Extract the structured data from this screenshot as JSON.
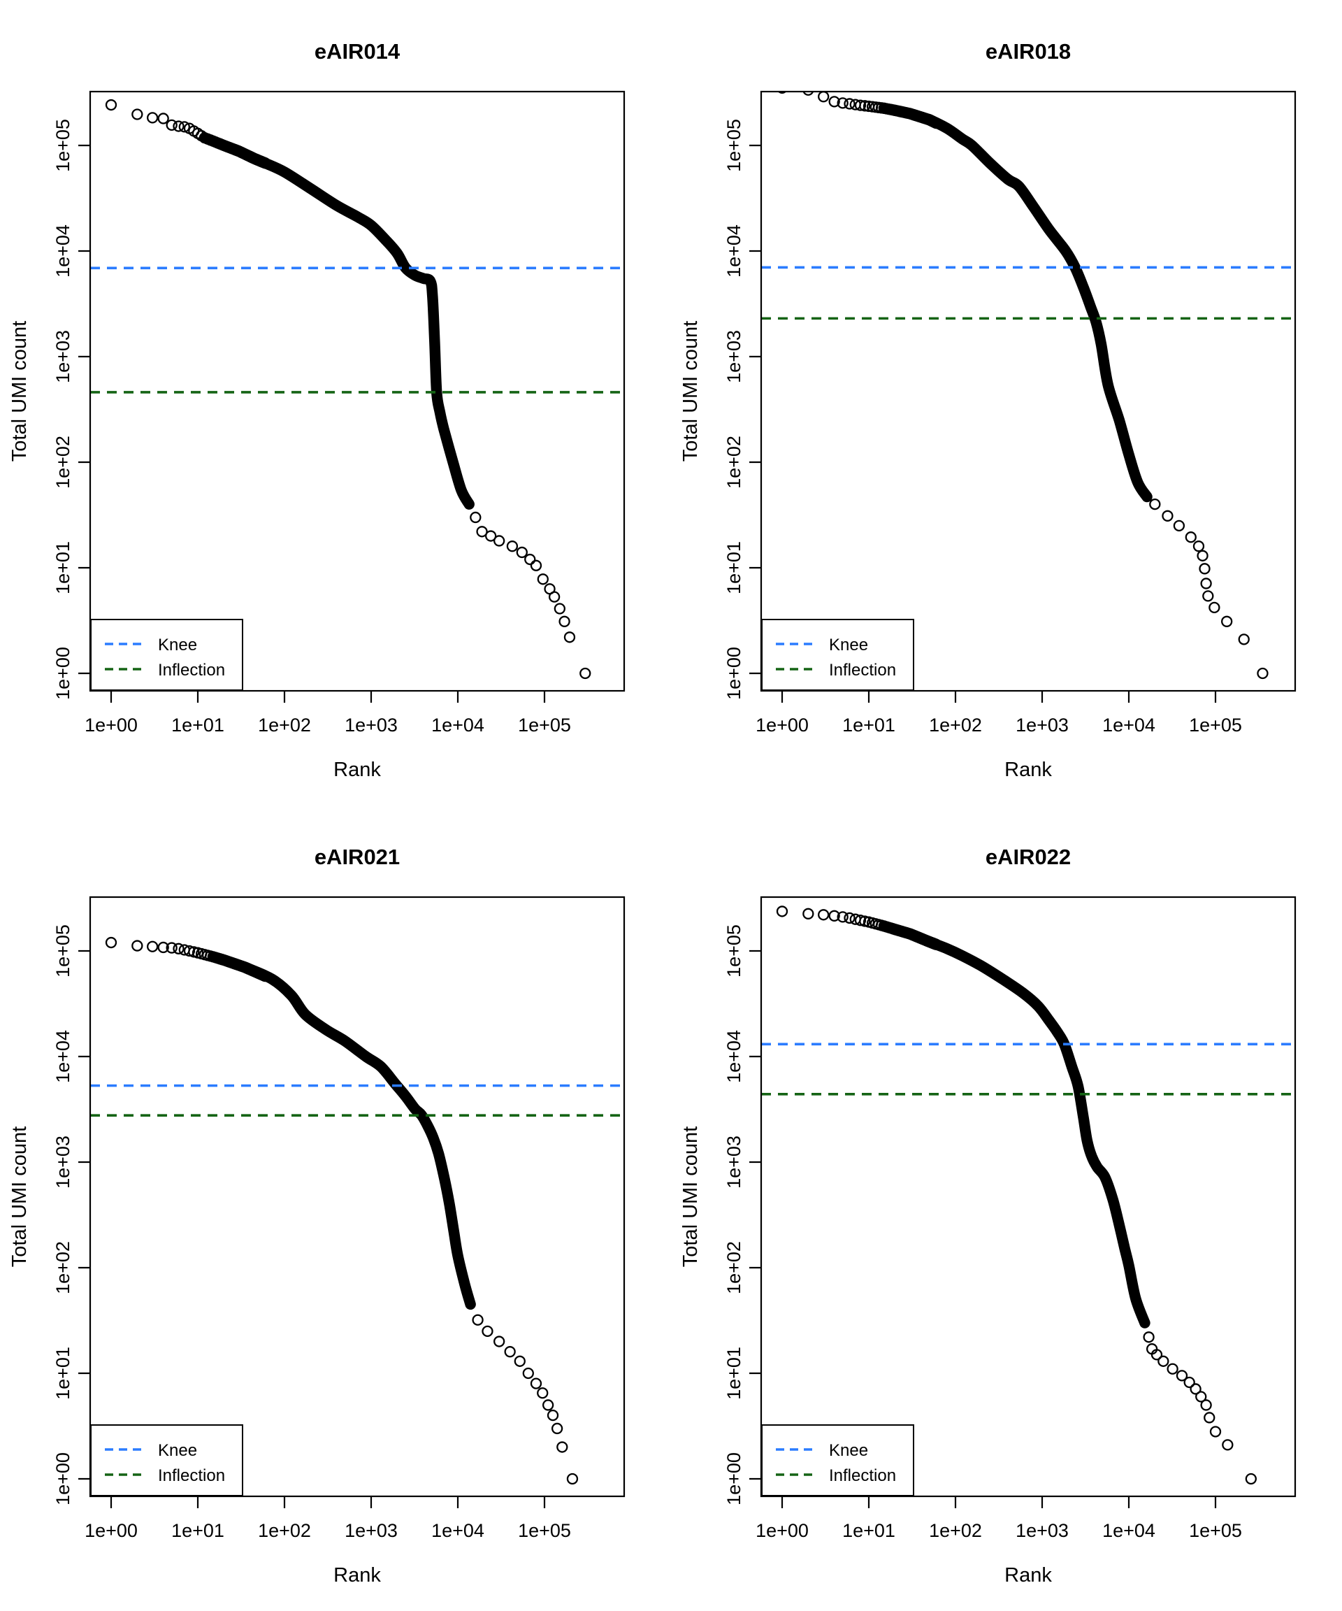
{
  "figure": {
    "background": "#ffffff",
    "legend": {
      "knee_label": "Knee",
      "inflection_label": "Inflection"
    },
    "colors": {
      "knee": "#2B7CFF",
      "inflection": "#156415",
      "points": "#000000"
    },
    "x_ticks": [
      {
        "label": "1e+00",
        "value": 1
      },
      {
        "label": "1e+01",
        "value": 10
      },
      {
        "label": "1e+02",
        "value": 100
      },
      {
        "label": "1e+03",
        "value": 1000
      },
      {
        "label": "1e+04",
        "value": 10000
      },
      {
        "label": "1e+05",
        "value": 100000
      }
    ],
    "y_ticks": [
      {
        "label": "1e+00",
        "value": 1
      },
      {
        "label": "1e+01",
        "value": 10
      },
      {
        "label": "1e+02",
        "value": 100
      },
      {
        "label": "1e+03",
        "value": 1000
      },
      {
        "label": "1e+04",
        "value": 10000
      },
      {
        "label": "1e+05",
        "value": 100000
      }
    ]
  },
  "chart_data": [
    {
      "type": "scatter",
      "title": "eAIR014",
      "xlabel": "Rank",
      "ylabel": "Total UMI count",
      "x_scale": "log",
      "y_scale": "log",
      "x_range": [
        1,
        295000
      ],
      "y_range": [
        1,
        242000
      ],
      "knee": 6900,
      "inflection": 460,
      "curve": [
        [
          1,
          242000
        ],
        [
          2,
          197000
        ],
        [
          3,
          183000
        ],
        [
          4,
          180000
        ],
        [
          5,
          156000
        ],
        [
          6,
          152000
        ],
        [
          7,
          150000
        ],
        [
          8,
          145000
        ],
        [
          10,
          130000
        ],
        [
          12,
          118000
        ],
        [
          15,
          110000
        ],
        [
          20,
          100000
        ],
        [
          30,
          88000
        ],
        [
          45,
          75000
        ],
        [
          60,
          68000
        ],
        [
          100,
          56000
        ],
        [
          200,
          39000
        ],
        [
          400,
          27000
        ],
        [
          700,
          21000
        ],
        [
          1000,
          17500
        ],
        [
          1500,
          12500
        ],
        [
          2000,
          9500
        ],
        [
          2500,
          6900
        ],
        [
          3200,
          5900
        ],
        [
          4000,
          5500
        ],
        [
          4800,
          5200
        ],
        [
          5100,
          3800
        ],
        [
          5400,
          1400
        ],
        [
          5700,
          460
        ],
        [
          6200,
          300
        ],
        [
          6900,
          205
        ],
        [
          8800,
          100
        ],
        [
          11000,
          54
        ],
        [
          13500,
          40
        ]
      ],
      "tail": [
        [
          16000,
          30
        ],
        [
          19000,
          22
        ],
        [
          24000,
          20
        ],
        [
          30000,
          18
        ],
        [
          42500,
          16
        ],
        [
          55000,
          14
        ],
        [
          68000,
          12
        ],
        [
          80000,
          10.5
        ],
        [
          96000,
          7.8
        ],
        [
          115000,
          6.3
        ],
        [
          130000,
          5.3
        ],
        [
          150000,
          4.1
        ],
        [
          170000,
          3.1
        ],
        [
          195000,
          2.2
        ],
        [
          295000,
          1
        ]
      ]
    },
    {
      "type": "scatter",
      "title": "eAIR018",
      "xlabel": "Rank",
      "ylabel": "Total UMI count",
      "x_scale": "log",
      "y_scale": "log",
      "x_range": [
        1,
        350000
      ],
      "y_range": [
        1,
        350000
      ],
      "knee": 7000,
      "inflection": 2300,
      "curve": [
        [
          1,
          350000
        ],
        [
          2,
          335000
        ],
        [
          3,
          290000
        ],
        [
          4,
          260000
        ],
        [
          5,
          252000
        ],
        [
          6,
          248000
        ],
        [
          8,
          240000
        ],
        [
          10,
          235000
        ],
        [
          15,
          225000
        ],
        [
          20,
          215000
        ],
        [
          30,
          200000
        ],
        [
          50,
          175000
        ],
        [
          80,
          145000
        ],
        [
          120,
          115000
        ],
        [
          155,
          100000
        ],
        [
          250,
          68000
        ],
        [
          400,
          48000
        ],
        [
          540,
          41000
        ],
        [
          800,
          26000
        ],
        [
          1200,
          16000
        ],
        [
          1870,
          10000
        ],
        [
          2400,
          7000
        ],
        [
          3000,
          4500
        ],
        [
          3600,
          3000
        ],
        [
          4200,
          2100
        ],
        [
          4800,
          1300
        ],
        [
          5750,
          540
        ],
        [
          7750,
          250
        ],
        [
          10000,
          118
        ],
        [
          12700,
          64
        ],
        [
          16200,
          47
        ]
      ],
      "tail": [
        [
          20000,
          40
        ],
        [
          28000,
          31
        ],
        [
          38000,
          25
        ],
        [
          52000,
          19.5
        ],
        [
          64000,
          16
        ],
        [
          71000,
          13
        ],
        [
          75000,
          9.8
        ],
        [
          78000,
          7.1
        ],
        [
          82000,
          5.4
        ],
        [
          97000,
          4.2
        ],
        [
          135000,
          3.1
        ],
        [
          213000,
          2.1
        ],
        [
          350000,
          1
        ]
      ]
    },
    {
      "type": "scatter",
      "title": "eAIR021",
      "xlabel": "Rank",
      "ylabel": "Total UMI count",
      "x_scale": "log",
      "y_scale": "log",
      "x_range": [
        1,
        210000
      ],
      "y_range": [
        1,
        120000
      ],
      "knee": 5300,
      "inflection": 2770,
      "curve": [
        [
          1,
          120000
        ],
        [
          2,
          112000
        ],
        [
          3,
          110000
        ],
        [
          4,
          108000
        ],
        [
          5,
          107000
        ],
        [
          6,
          105000
        ],
        [
          8,
          100000
        ],
        [
          10,
          96000
        ],
        [
          15,
          88000
        ],
        [
          20,
          82000
        ],
        [
          35,
          70000
        ],
        [
          72,
          54000
        ],
        [
          120,
          38000
        ],
        [
          174,
          25000
        ],
        [
          300,
          18000
        ],
        [
          500,
          14000
        ],
        [
          870,
          10000
        ],
        [
          1300,
          8000
        ],
        [
          1900,
          5500
        ],
        [
          2500,
          4200
        ],
        [
          3200,
          3200
        ],
        [
          3800,
          2800
        ],
        [
          4500,
          2200
        ],
        [
          5200,
          1700
        ],
        [
          6000,
          1200
        ],
        [
          7000,
          700
        ],
        [
          8000,
          400
        ],
        [
          9000,
          220
        ],
        [
          10000,
          130
        ],
        [
          12000,
          70
        ],
        [
          14000,
          45
        ]
      ],
      "tail": [
        [
          17000,
          32
        ],
        [
          22000,
          25
        ],
        [
          30000,
          20
        ],
        [
          40000,
          16
        ],
        [
          52000,
          13
        ],
        [
          65000,
          10
        ],
        [
          80000,
          8
        ],
        [
          95000,
          6.5
        ],
        [
          110000,
          5
        ],
        [
          125000,
          4
        ],
        [
          140000,
          3
        ],
        [
          160000,
          2
        ],
        [
          210000,
          1
        ]
      ]
    },
    {
      "type": "scatter",
      "title": "eAIR022",
      "xlabel": "Rank",
      "ylabel": "Total UMI count",
      "x_scale": "log",
      "y_scale": "log",
      "x_range": [
        1,
        257000
      ],
      "y_range": [
        1,
        237000
      ],
      "knee": 13100,
      "inflection": 4400,
      "curve": [
        [
          1,
          237000
        ],
        [
          2,
          225000
        ],
        [
          3,
          220000
        ],
        [
          4,
          215000
        ],
        [
          5,
          210000
        ],
        [
          6,
          205000
        ],
        [
          8,
          195000
        ],
        [
          10,
          188000
        ],
        [
          15,
          172000
        ],
        [
          20,
          160000
        ],
        [
          30,
          145000
        ],
        [
          50,
          122000
        ],
        [
          80,
          105000
        ],
        [
          120,
          90000
        ],
        [
          200,
          72000
        ],
        [
          350,
          54000
        ],
        [
          600,
          40000
        ],
        [
          900,
          30000
        ],
        [
          1200,
          22000
        ],
        [
          1500,
          17000
        ],
        [
          1800,
          13100
        ],
        [
          2200,
          8000
        ],
        [
          2600,
          5200
        ],
        [
          3000,
          2600
        ],
        [
          3300,
          1600
        ],
        [
          3700,
          1150
        ],
        [
          4300,
          900
        ],
        [
          5300,
          720
        ],
        [
          6500,
          450
        ],
        [
          7700,
          260
        ],
        [
          9000,
          150
        ],
        [
          10000,
          105
        ],
        [
          12000,
          51
        ],
        [
          15300,
          30
        ]
      ],
      "tail": [
        [
          17000,
          22
        ],
        [
          18500,
          17
        ],
        [
          21000,
          15
        ],
        [
          25000,
          13
        ],
        [
          32000,
          11
        ],
        [
          41000,
          9.5
        ],
        [
          50000,
          8.2
        ],
        [
          59000,
          7.1
        ],
        [
          68000,
          6
        ],
        [
          78000,
          5
        ],
        [
          85000,
          3.8
        ],
        [
          100000,
          2.8
        ],
        [
          138000,
          2.1
        ],
        [
          257000,
          1
        ]
      ]
    }
  ]
}
